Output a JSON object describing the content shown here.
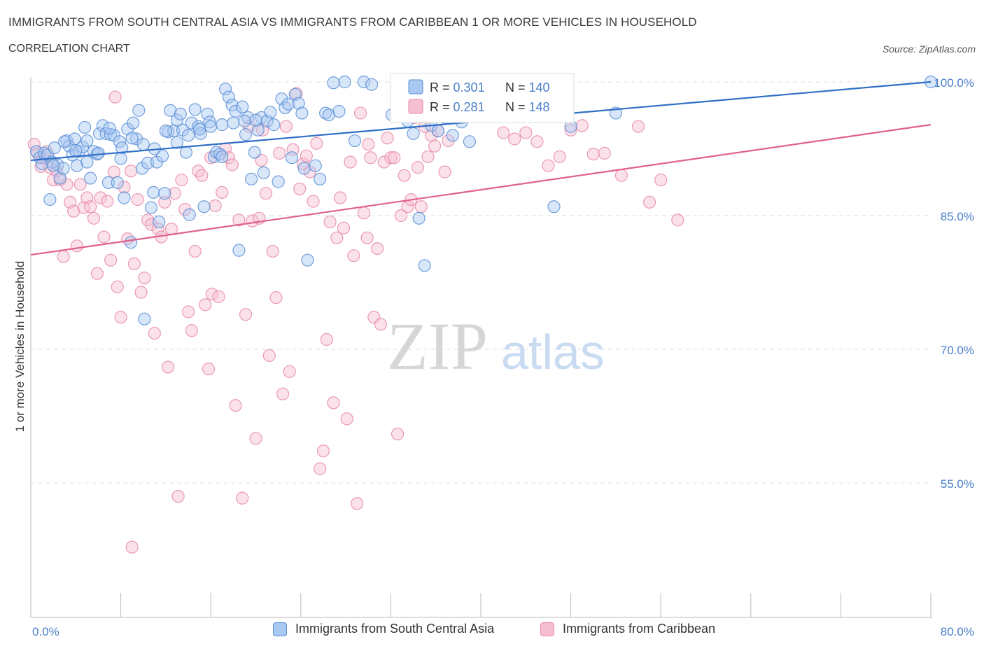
{
  "title": "IMMIGRANTS FROM SOUTH CENTRAL ASIA VS IMMIGRANTS FROM CARIBBEAN 1 OR MORE VEHICLES IN HOUSEHOLD",
  "subtitle": "CORRELATION CHART",
  "source": "Source: ZipAtlas.com",
  "watermark": {
    "zip": "ZIP",
    "atlas": "atlas"
  },
  "legend_top": [
    {
      "r_label": "R = ",
      "r_value": "0.301",
      "n_label": "N = ",
      "n_value": "140"
    },
    {
      "r_label": "R = ",
      "r_value": "0.281",
      "n_label": "N = ",
      "n_value": "148"
    }
  ],
  "legend_bottom": [
    {
      "label": "Immigrants from South Central Asia"
    },
    {
      "label": "Immigrants from Caribbean"
    }
  ],
  "colors": {
    "blue_fill": "#a9c8f2",
    "blue_stroke": "#5b8fd6",
    "blue_line": "#2f6fc6",
    "pink_fill": "#f6bfd1",
    "pink_stroke": "#e888a8",
    "pink_line": "#e0608c",
    "grid": "#dddddd",
    "axis_label": "#4a7fc8"
  },
  "chart_data": {
    "type": "scatter",
    "title": "IMMIGRANTS FROM SOUTH CENTRAL ASIA VS IMMIGRANTS FROM CARIBBEAN 1 OR MORE VEHICLES IN HOUSEHOLD",
    "xlabel": "",
    "ylabel": "1 or more Vehicles in Household",
    "xlim": [
      0,
      80
    ],
    "ylim": [
      40,
      101.5
    ],
    "x_tick_labels": [
      "0.0%",
      "80.0%"
    ],
    "y_ticks": [
      55,
      70,
      85,
      100
    ],
    "y_tick_labels": [
      "55.0%",
      "70.0%",
      "85.0%",
      "100.0%"
    ],
    "grid": true,
    "legend_placement": "top-center",
    "series": [
      {
        "name": "Immigrants from South Central Asia",
        "color": "#5b8fd6",
        "trend": {
          "x": [
            0,
            80
          ],
          "y": [
            91.2,
            100.0
          ]
        },
        "points": [
          [
            0.5,
            92.2
          ],
          [
            0.8,
            91.5
          ],
          [
            1.0,
            90.8
          ],
          [
            1.2,
            92.0
          ],
          [
            1.5,
            91.8
          ],
          [
            1.7,
            86.8
          ],
          [
            1.9,
            91.0
          ],
          [
            2.1,
            92.6
          ],
          [
            2.4,
            90.7
          ],
          [
            2.6,
            89.2
          ],
          [
            2.9,
            90.3
          ],
          [
            3.2,
            93.4
          ],
          [
            3.4,
            92.8
          ],
          [
            3.7,
            91.8
          ],
          [
            3.9,
            93.6
          ],
          [
            4.1,
            90.6
          ],
          [
            4.3,
            92.2
          ],
          [
            4.6,
            92.7
          ],
          [
            4.8,
            94.9
          ],
          [
            5.0,
            91.0
          ],
          [
            5.3,
            89.2
          ],
          [
            5.6,
            92.2
          ],
          [
            5.9,
            91.9
          ],
          [
            6.1,
            94.2
          ],
          [
            6.4,
            95.1
          ],
          [
            6.7,
            94.2
          ],
          [
            6.9,
            88.7
          ],
          [
            7.1,
            94.1
          ],
          [
            7.4,
            94.0
          ],
          [
            7.7,
            88.7
          ],
          [
            7.9,
            93.3
          ],
          [
            8.1,
            92.6
          ],
          [
            8.3,
            87.0
          ],
          [
            8.6,
            94.7
          ],
          [
            8.9,
            82.0
          ],
          [
            9.1,
            95.4
          ],
          [
            9.4,
            93.6
          ],
          [
            9.6,
            96.8
          ],
          [
            9.9,
            90.3
          ],
          [
            10.1,
            73.4
          ],
          [
            10.4,
            90.9
          ],
          [
            10.7,
            85.9
          ],
          [
            10.9,
            87.6
          ],
          [
            11.2,
            91.0
          ],
          [
            11.4,
            84.3
          ],
          [
            11.7,
            91.7
          ],
          [
            11.9,
            87.5
          ],
          [
            12.2,
            94.4
          ],
          [
            12.4,
            96.8
          ],
          [
            12.7,
            94.5
          ],
          [
            13.0,
            95.7
          ],
          [
            13.3,
            96.4
          ],
          [
            13.5,
            94.6
          ],
          [
            13.8,
            92.1
          ],
          [
            14.1,
            85.1
          ],
          [
            14.3,
            95.4
          ],
          [
            14.6,
            96.9
          ],
          [
            14.9,
            95.0
          ],
          [
            15.1,
            94.2
          ],
          [
            15.4,
            86.0
          ],
          [
            15.7,
            96.4
          ],
          [
            15.9,
            95.5
          ],
          [
            16.3,
            91.6
          ],
          [
            16.5,
            92.1
          ],
          [
            16.8,
            91.9
          ],
          [
            17.0,
            91.6
          ],
          [
            17.3,
            99.2
          ],
          [
            17.6,
            98.3
          ],
          [
            17.9,
            97.4
          ],
          [
            18.2,
            96.7
          ],
          [
            18.5,
            81.1
          ],
          [
            18.8,
            97.2
          ],
          [
            19.1,
            94.1
          ],
          [
            19.3,
            96.0
          ],
          [
            19.6,
            89.1
          ],
          [
            19.9,
            92.1
          ],
          [
            20.2,
            94.6
          ],
          [
            20.5,
            96.0
          ],
          [
            20.7,
            89.8
          ],
          [
            21.0,
            95.6
          ],
          [
            21.3,
            96.6
          ],
          [
            21.6,
            95.2
          ],
          [
            22.0,
            88.8
          ],
          [
            22.3,
            98.1
          ],
          [
            22.6,
            97.1
          ],
          [
            22.9,
            97.5
          ],
          [
            23.2,
            91.5
          ],
          [
            23.5,
            98.6
          ],
          [
            23.8,
            97.6
          ],
          [
            24.1,
            96.5
          ],
          [
            24.3,
            90.3
          ],
          [
            24.6,
            80.0
          ],
          [
            25.3,
            90.6
          ],
          [
            25.7,
            89.1
          ],
          [
            26.2,
            96.5
          ],
          [
            26.5,
            96.3
          ],
          [
            26.9,
            99.9
          ],
          [
            27.4,
            96.7
          ],
          [
            27.9,
            100.0
          ],
          [
            28.8,
            93.4
          ],
          [
            29.6,
            100.0
          ],
          [
            30.3,
            99.7
          ],
          [
            32.1,
            96.3
          ],
          [
            32.5,
            97.6
          ],
          [
            33.5,
            95.6
          ],
          [
            34.0,
            94.2
          ],
          [
            34.5,
            84.7
          ],
          [
            35.0,
            79.4
          ],
          [
            35.6,
            95.1
          ],
          [
            36.2,
            94.5
          ],
          [
            36.8,
            96.0
          ],
          [
            37.5,
            94.0
          ],
          [
            38.3,
            95.5
          ],
          [
            39.0,
            93.3
          ],
          [
            41.0,
            97.7
          ],
          [
            43.5,
            96.8
          ],
          [
            45.0,
            96.3
          ],
          [
            46.5,
            86.0
          ],
          [
            48.0,
            95.0
          ],
          [
            52.0,
            96.5
          ],
          [
            2.0,
            90.6
          ],
          [
            3.0,
            93.3
          ],
          [
            4.0,
            92.3
          ],
          [
            5.0,
            93.4
          ],
          [
            6.0,
            92.0
          ],
          [
            7.0,
            94.8
          ],
          [
            8.0,
            91.4
          ],
          [
            9.0,
            93.7
          ],
          [
            10.0,
            93.0
          ],
          [
            11.0,
            92.5
          ],
          [
            12.0,
            94.5
          ],
          [
            13.0,
            93.2
          ],
          [
            14.0,
            94.0
          ],
          [
            15.0,
            94.7
          ],
          [
            16.0,
            95.0
          ],
          [
            17.0,
            95.2
          ],
          [
            18.0,
            95.4
          ],
          [
            19.0,
            95.6
          ],
          [
            20.0,
            95.7
          ],
          [
            80.0,
            100.0
          ]
        ]
      },
      {
        "name": "Immigrants from Caribbean",
        "color": "#e888a8",
        "trend": {
          "x": [
            0,
            80
          ],
          "y": [
            80.6,
            95.2
          ]
        },
        "points": [
          [
            0.3,
            93.0
          ],
          [
            0.6,
            92.0
          ],
          [
            0.9,
            90.5
          ],
          [
            1.1,
            91.5
          ],
          [
            1.4,
            92.2
          ],
          [
            1.7,
            90.4
          ],
          [
            2.0,
            89.0
          ],
          [
            2.3,
            90.0
          ],
          [
            2.6,
            89.0
          ],
          [
            2.9,
            80.4
          ],
          [
            3.2,
            88.5
          ],
          [
            3.5,
            86.5
          ],
          [
            3.8,
            85.5
          ],
          [
            4.1,
            81.6
          ],
          [
            4.4,
            88.5
          ],
          [
            4.7,
            85.9
          ],
          [
            5.0,
            87.0
          ],
          [
            5.3,
            86.0
          ],
          [
            5.6,
            84.7
          ],
          [
            5.9,
            78.5
          ],
          [
            6.2,
            87.0
          ],
          [
            6.5,
            82.6
          ],
          [
            6.8,
            86.6
          ],
          [
            7.1,
            80.0
          ],
          [
            7.4,
            89.9
          ],
          [
            7.7,
            77.0
          ],
          [
            8.0,
            73.6
          ],
          [
            8.3,
            88.2
          ],
          [
            8.6,
            82.4
          ],
          [
            8.9,
            90.0
          ],
          [
            9.2,
            79.6
          ],
          [
            9.5,
            86.8
          ],
          [
            9.8,
            76.4
          ],
          [
            10.1,
            78.0
          ],
          [
            10.4,
            84.5
          ],
          [
            10.7,
            84.0
          ],
          [
            11.0,
            71.8
          ],
          [
            11.3,
            83.5
          ],
          [
            11.6,
            82.6
          ],
          [
            11.9,
            86.5
          ],
          [
            12.2,
            68.0
          ],
          [
            12.5,
            83.5
          ],
          [
            12.8,
            87.5
          ],
          [
            13.1,
            53.5
          ],
          [
            13.4,
            89.0
          ],
          [
            13.7,
            85.7
          ],
          [
            14.0,
            74.2
          ],
          [
            14.3,
            72.1
          ],
          [
            14.6,
            81.0
          ],
          [
            14.9,
            90.0
          ],
          [
            15.2,
            89.5
          ],
          [
            15.5,
            75.0
          ],
          [
            15.8,
            67.8
          ],
          [
            16.1,
            76.2
          ],
          [
            16.4,
            86.1
          ],
          [
            16.7,
            75.9
          ],
          [
            17.0,
            87.6
          ],
          [
            17.3,
            92.5
          ],
          [
            17.6,
            91.5
          ],
          [
            17.9,
            90.7
          ],
          [
            18.2,
            63.7
          ],
          [
            18.5,
            84.5
          ],
          [
            18.8,
            53.3
          ],
          [
            19.1,
            73.9
          ],
          [
            19.4,
            95.0
          ],
          [
            19.7,
            84.4
          ],
          [
            20.0,
            60.0
          ],
          [
            20.3,
            84.7
          ],
          [
            20.6,
            94.6
          ],
          [
            20.9,
            87.5
          ],
          [
            21.2,
            69.3
          ],
          [
            21.5,
            81.0
          ],
          [
            21.8,
            75.8
          ],
          [
            22.1,
            92.0
          ],
          [
            22.4,
            65.0
          ],
          [
            22.7,
            95.0
          ],
          [
            23.0,
            67.5
          ],
          [
            23.3,
            92.4
          ],
          [
            23.6,
            98.7
          ],
          [
            23.9,
            88.0
          ],
          [
            24.2,
            90.8
          ],
          [
            24.5,
            91.7
          ],
          [
            24.8,
            89.9
          ],
          [
            25.1,
            86.6
          ],
          [
            25.4,
            93.1
          ],
          [
            25.7,
            56.6
          ],
          [
            26.0,
            58.6
          ],
          [
            26.3,
            71.1
          ],
          [
            26.6,
            84.3
          ],
          [
            26.9,
            64.0
          ],
          [
            27.2,
            82.5
          ],
          [
            27.5,
            87.0
          ],
          [
            27.8,
            83.6
          ],
          [
            28.1,
            62.2
          ],
          [
            28.4,
            91.0
          ],
          [
            28.7,
            80.5
          ],
          [
            29.0,
            52.7
          ],
          [
            29.3,
            96.5
          ],
          [
            29.6,
            85.3
          ],
          [
            29.9,
            82.5
          ],
          [
            30.2,
            91.5
          ],
          [
            30.5,
            73.6
          ],
          [
            30.8,
            81.3
          ],
          [
            31.1,
            72.8
          ],
          [
            31.4,
            91.0
          ],
          [
            31.7,
            93.7
          ],
          [
            32.0,
            91.5
          ],
          [
            32.3,
            91.5
          ],
          [
            32.6,
            60.5
          ],
          [
            32.9,
            85.0
          ],
          [
            33.2,
            89.5
          ],
          [
            33.5,
            86.0
          ],
          [
            33.8,
            86.8
          ],
          [
            34.1,
            96.0
          ],
          [
            34.4,
            90.4
          ],
          [
            34.7,
            86.0
          ],
          [
            35.0,
            95.0
          ],
          [
            35.3,
            91.6
          ],
          [
            35.6,
            94.0
          ],
          [
            35.9,
            92.8
          ],
          [
            36.2,
            94.5
          ],
          [
            36.5,
            96.3
          ],
          [
            36.8,
            89.9
          ],
          [
            37.1,
            93.4
          ],
          [
            38.0,
            96.5
          ],
          [
            39.0,
            100.0
          ],
          [
            40.0,
            96.5
          ],
          [
            41.0,
            100.0
          ],
          [
            42.0,
            94.3
          ],
          [
            43.0,
            93.6
          ],
          [
            44.0,
            94.3
          ],
          [
            45.0,
            93.3
          ],
          [
            46.0,
            90.6
          ],
          [
            47.0,
            91.6
          ],
          [
            48.0,
            94.6
          ],
          [
            49.0,
            95.1
          ],
          [
            50.0,
            91.9
          ],
          [
            51.0,
            92.0
          ],
          [
            52.5,
            89.5
          ],
          [
            54.0,
            95.0
          ],
          [
            55.0,
            86.5
          ],
          [
            56.0,
            89.0
          ],
          [
            57.5,
            84.5
          ],
          [
            7.5,
            98.3
          ],
          [
            9.0,
            47.8
          ],
          [
            16.0,
            91.5
          ],
          [
            20.5,
            91.2
          ],
          [
            30.0,
            93.0
          ]
        ]
      }
    ]
  }
}
